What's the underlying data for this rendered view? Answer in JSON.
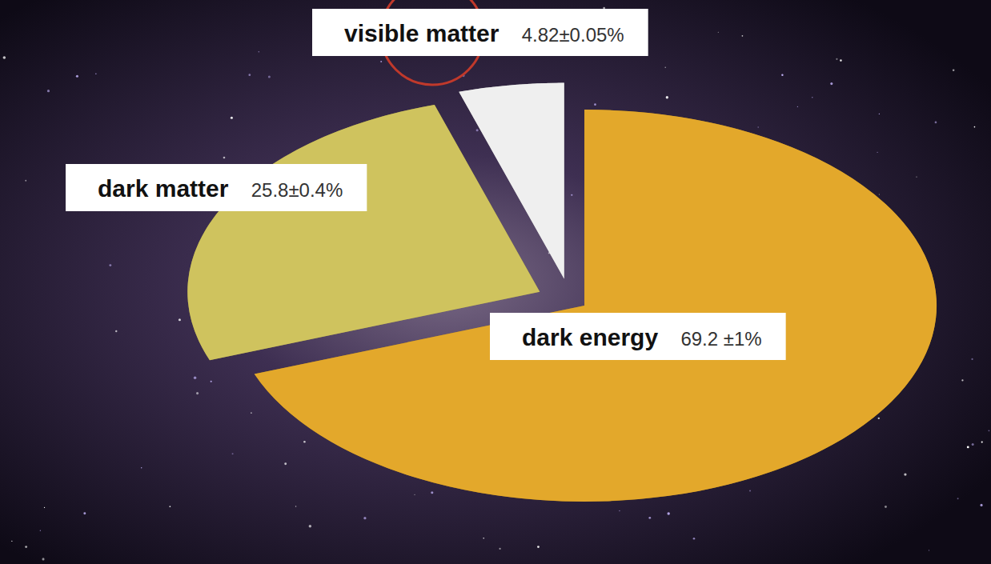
{
  "chart_data": {
    "type": "pie",
    "categories": [
      "dark energy",
      "dark matter",
      "visible matter"
    ],
    "values": [
      69.2,
      25.8,
      4.82
    ],
    "value_labels": [
      "69.2 ±1%",
      "25.8±0.4%",
      "4.82±0.05%"
    ],
    "colors": [
      "#e3a82b",
      "#cfc35e",
      "#efefef"
    ]
  }
}
